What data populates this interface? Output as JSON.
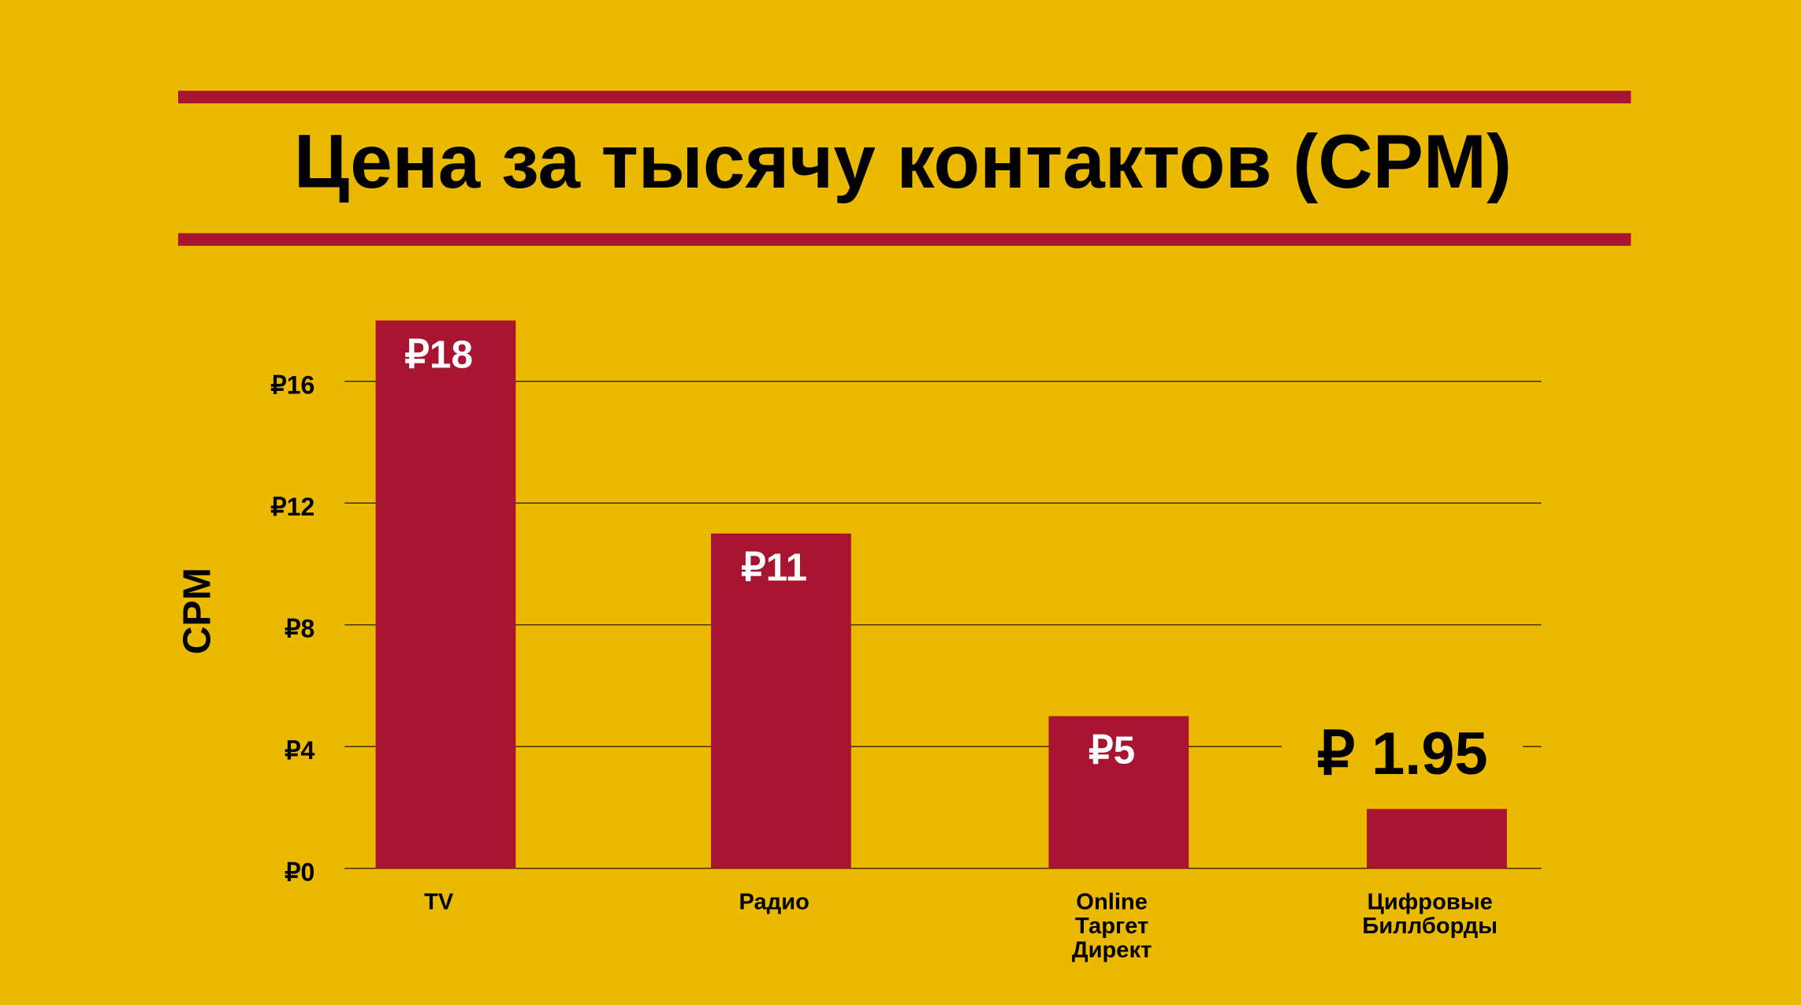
{
  "chart_data": {
    "type": "bar",
    "title": "Цена за тысячу контактов (CPM)",
    "y_label": "CPM",
    "categories": [
      [
        "TV"
      ],
      [
        "Радио"
      ],
      [
        "Online",
        "Таргет",
        "Директ"
      ],
      [
        "Цифровые",
        "Биллборды"
      ]
    ],
    "values": [
      18,
      11,
      5,
      1.95
    ],
    "value_labels": [
      "₽18",
      "₽11",
      "₽5",
      "₽ 1.95"
    ],
    "color": "#a81530",
    "ylim": [
      0,
      16
    ],
    "yticks": [
      {
        "value": 0,
        "label": "₽0"
      },
      {
        "value": 4,
        "label": "₽4"
      },
      {
        "value": 8,
        "label": "₽8"
      },
      {
        "value": 12,
        "label": "₽12"
      },
      {
        "value": 16,
        "label": "₽16"
      }
    ],
    "grid": true
  }
}
